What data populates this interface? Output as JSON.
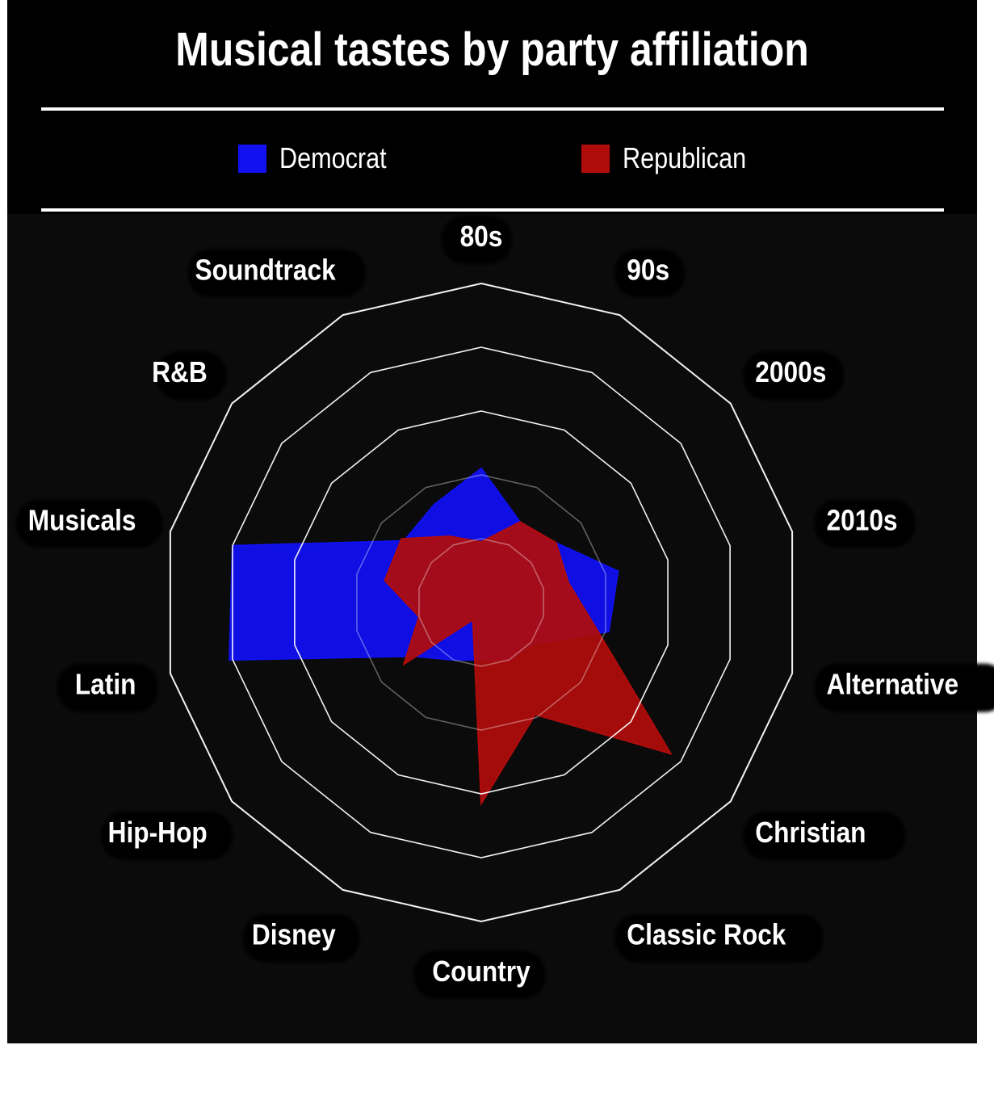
{
  "chart_data": {
    "type": "radar",
    "title": "Musical tastes by party affiliation",
    "categories": [
      "80s",
      "90s",
      "2000s",
      "2010s",
      "Alternative",
      "Christian",
      "Classic Rock",
      "Country",
      "Disney",
      "Hip-Hop",
      "Latin",
      "Musicals",
      "R&B",
      "Soundtrack"
    ],
    "range": [
      0,
      5
    ],
    "rings": 5,
    "legend_position": "top",
    "series": [
      {
        "name": "Democrat",
        "color": "#1010f0",
        "values": [
          2.1,
          1.4,
          1.5,
          2.2,
          2.05,
          1.05,
          1.0,
          0.9,
          1.0,
          1.35,
          4.05,
          4.0,
          1.55,
          1.7
        ]
      },
      {
        "name": "Republican",
        "color": "#b00c0c",
        "values": [
          0.95,
          1.4,
          1.5,
          1.4,
          1.85,
          3.8,
          1.95,
          3.15,
          0.3,
          1.55,
          1.0,
          1.55,
          1.6,
          1.15
        ]
      }
    ]
  }
}
